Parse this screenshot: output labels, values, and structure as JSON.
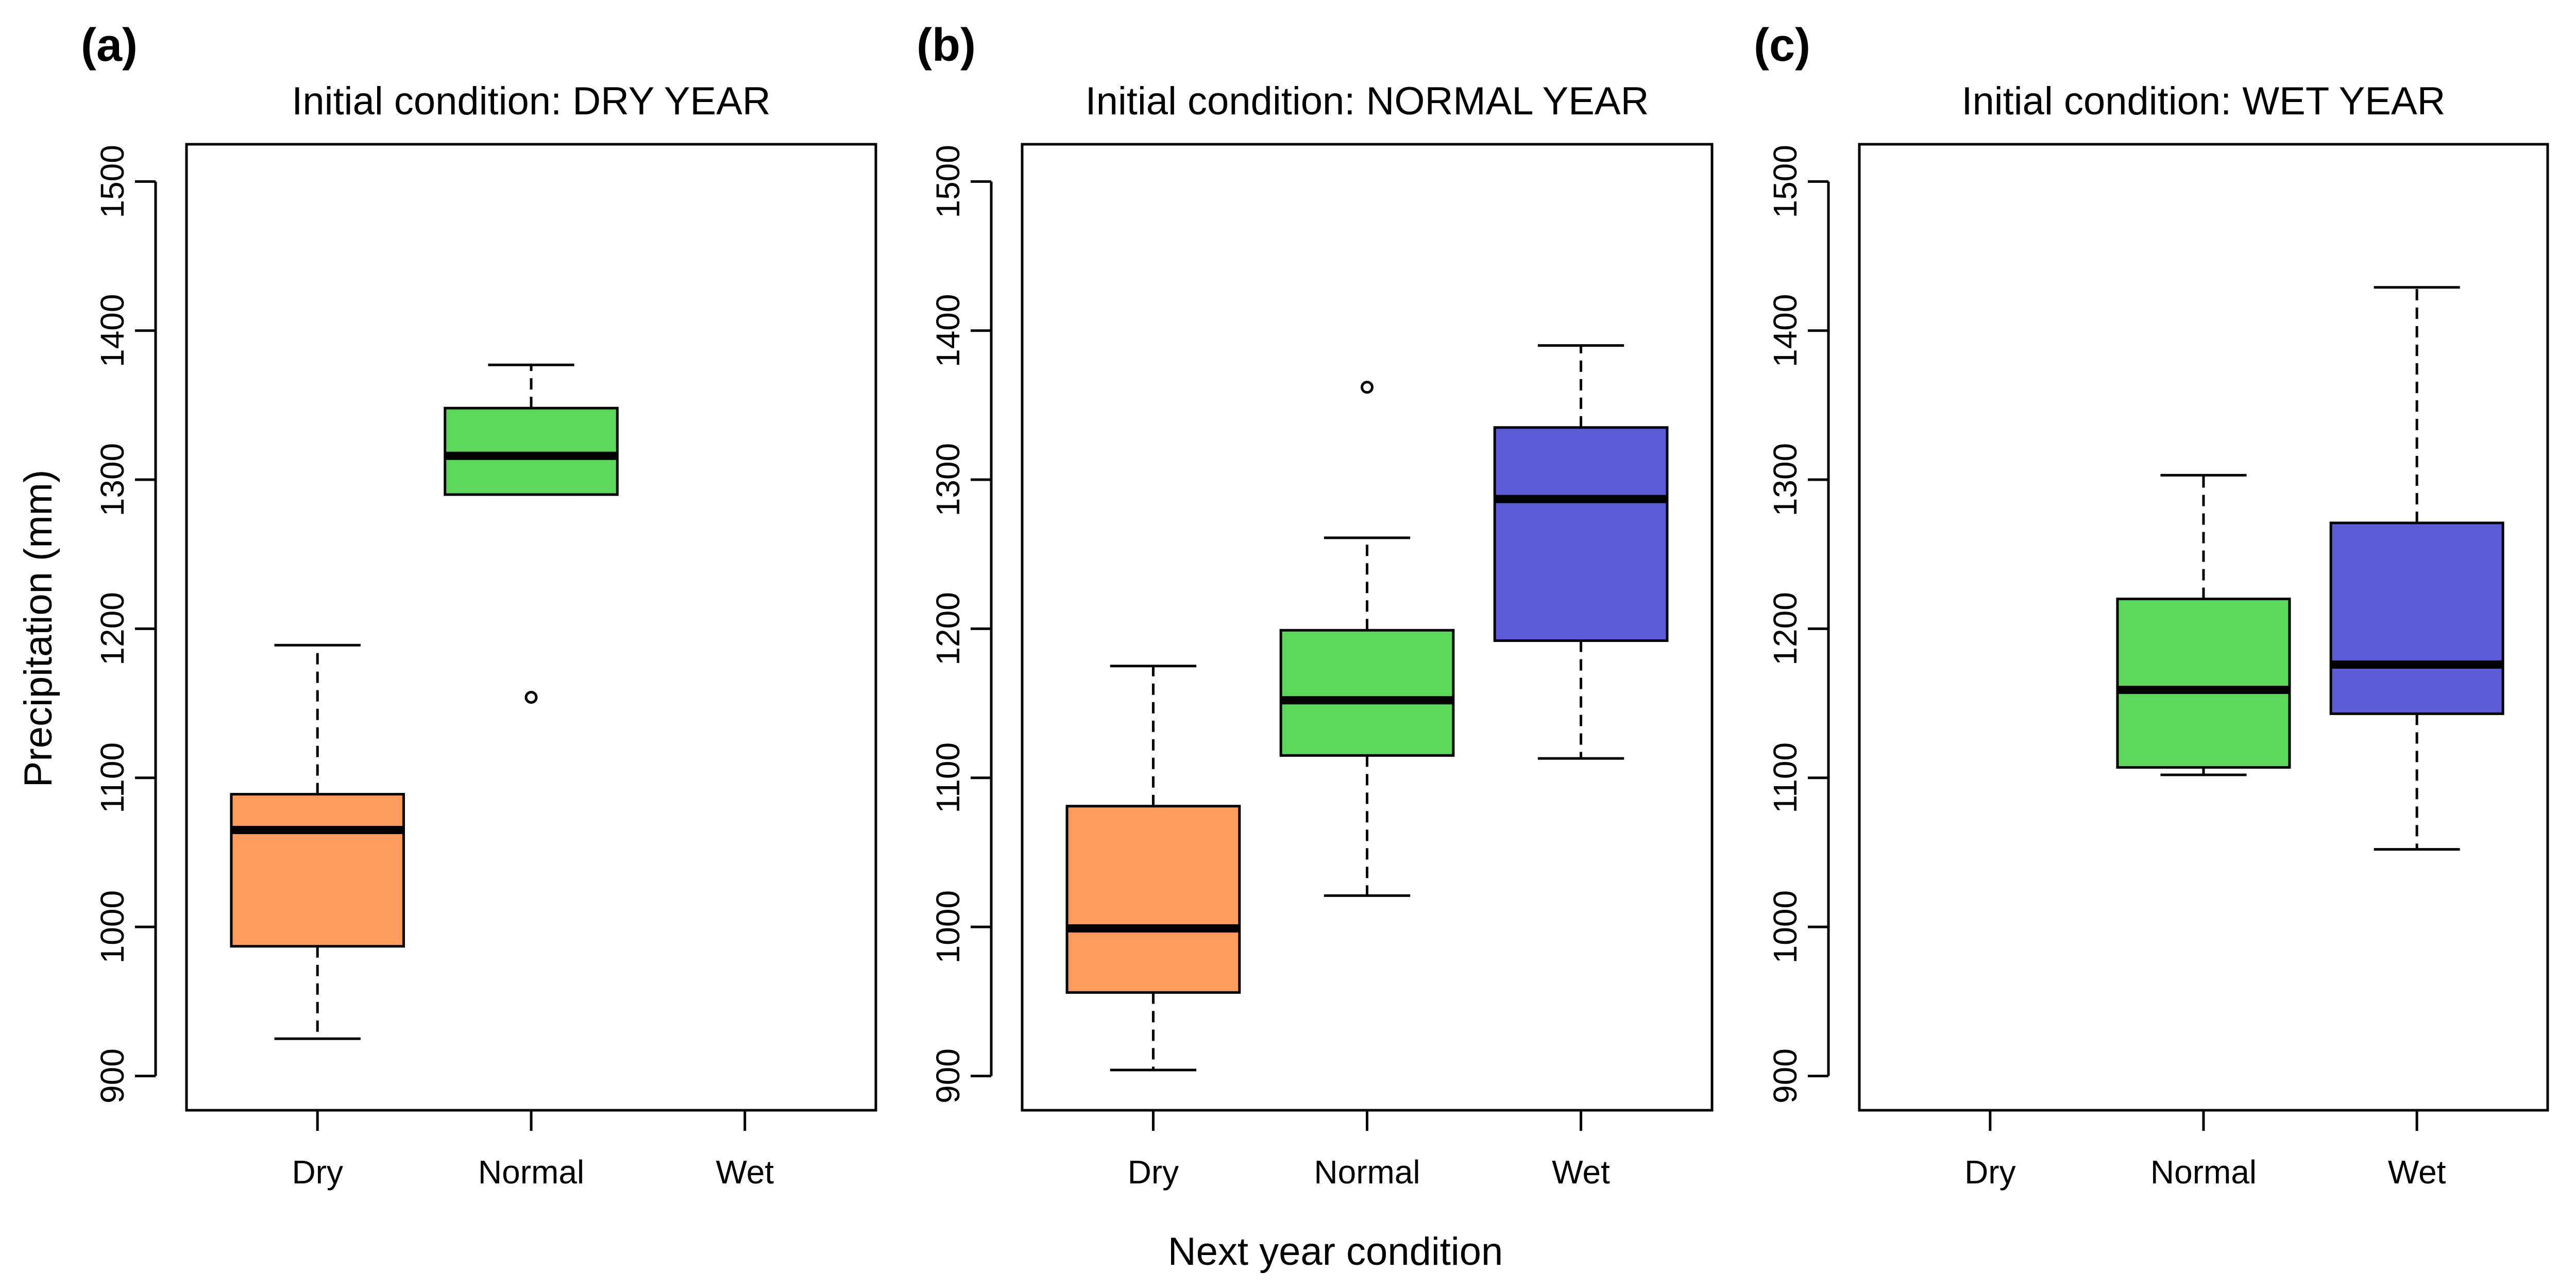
{
  "figure": {
    "ylabel": "Precipitation (mm)",
    "xlabel": "Next year condition"
  },
  "chart_data": [
    {
      "type": "box",
      "letter": "(a)",
      "title": "Initial condition: DRY YEAR",
      "categories": [
        "Dry",
        "Normal",
        "Wet"
      ],
      "ylim": [
        877,
        1525
      ],
      "yticks": [
        900,
        1000,
        1100,
        1200,
        1300,
        1400,
        1500
      ],
      "colors": {
        "Dry": "#FF9B5F",
        "Normal": "#5CD75C",
        "Wet": "#5C5CD7"
      },
      "boxes": [
        {
          "category": "Dry",
          "min": 925,
          "q1": 987,
          "median": 1065,
          "q3": 1089,
          "max": 1189,
          "outliers": []
        },
        {
          "category": "Normal",
          "min": 1290,
          "q1": 1290,
          "median": 1316,
          "q3": 1348,
          "max": 1377,
          "outliers": [
            1154
          ]
        }
      ]
    },
    {
      "type": "box",
      "letter": "(b)",
      "title": "Initial condition: NORMAL YEAR",
      "categories": [
        "Dry",
        "Normal",
        "Wet"
      ],
      "ylim": [
        877,
        1525
      ],
      "yticks": [
        900,
        1000,
        1100,
        1200,
        1300,
        1400,
        1500
      ],
      "colors": {
        "Dry": "#FF9B5F",
        "Normal": "#5CD75C",
        "Wet": "#5C5CD7"
      },
      "boxes": [
        {
          "category": "Dry",
          "min": 904,
          "q1": 956,
          "median": 999,
          "q3": 1081,
          "max": 1175,
          "outliers": []
        },
        {
          "category": "Normal",
          "min": 1021,
          "q1": 1115,
          "median": 1152,
          "q3": 1199,
          "max": 1261,
          "outliers": [
            1362
          ]
        },
        {
          "category": "Wet",
          "min": 1113,
          "q1": 1192,
          "median": 1287,
          "q3": 1335,
          "max": 1390,
          "outliers": []
        }
      ]
    },
    {
      "type": "box",
      "letter": "(c)",
      "title": "Initial condition: WET YEAR",
      "categories": [
        "Dry",
        "Normal",
        "Wet"
      ],
      "ylim": [
        877,
        1525
      ],
      "yticks": [
        900,
        1000,
        1100,
        1200,
        1300,
        1400,
        1500
      ],
      "colors": {
        "Dry": "#FF9B5F",
        "Normal": "#5CD75C",
        "Wet": "#5C5CD7"
      },
      "boxes": [
        {
          "category": "Normal",
          "min": 1102,
          "q1": 1107,
          "median": 1159,
          "q3": 1220,
          "max": 1303,
          "outliers": []
        },
        {
          "category": "Wet",
          "min": 1052,
          "q1": 1143,
          "median": 1176,
          "q3": 1271,
          "max": 1429,
          "outliers": []
        }
      ]
    }
  ]
}
